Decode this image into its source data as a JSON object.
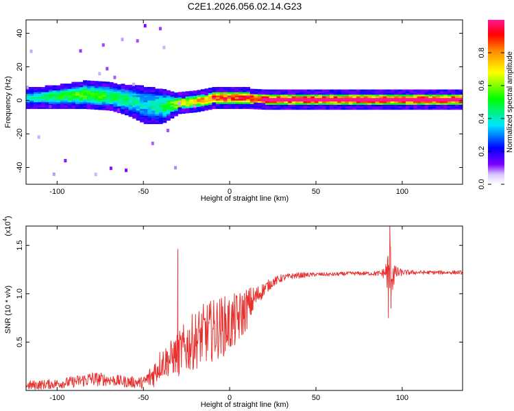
{
  "title": "C2E1.2026.056.02.14.G23",
  "chart_data": [
    {
      "type": "heatmap",
      "xlabel": "Height of straight line (km)",
      "ylabel": "Frequency (Hz)",
      "xlim": [
        -118,
        135
      ],
      "ylim": [
        -50,
        48
      ],
      "xticks": [
        -100,
        -50,
        0,
        50,
        100
      ],
      "yticks": [
        40,
        20,
        0,
        -20,
        -40
      ],
      "x_tick_labels": [
        "-100",
        "-50",
        "0",
        "50",
        "100"
      ],
      "y_tick_labels": [
        "40",
        "20",
        "0",
        "-20",
        "-40"
      ],
      "colorbar": {
        "label": "Normalized spectral amplitude",
        "range": [
          0,
          1
        ],
        "ticks": [
          0.0,
          0.2,
          0.4,
          0.6,
          0.8
        ],
        "tick_labels": [
          "0.0",
          "0.2",
          "0.4",
          "0.6",
          "0.8"
        ]
      },
      "band_profile": [
        {
          "x": -118,
          "center": 1,
          "halfwidth": 3,
          "amp": 0.4
        },
        {
          "x": -100,
          "center": 2,
          "halfwidth": 4,
          "amp": 0.5
        },
        {
          "x": -85,
          "center": 3,
          "halfwidth": 5,
          "amp": 0.55
        },
        {
          "x": -70,
          "center": 2,
          "halfwidth": 5,
          "amp": 0.5
        },
        {
          "x": -60,
          "center": 0,
          "halfwidth": 6,
          "amp": 0.45
        },
        {
          "x": -50,
          "center": -3,
          "halfwidth": 8,
          "amp": 0.35
        },
        {
          "x": -40,
          "center": -4,
          "halfwidth": 7,
          "amp": 0.45
        },
        {
          "x": -30,
          "center": -2,
          "halfwidth": 3,
          "amp": 0.7
        },
        {
          "x": -20,
          "center": -1,
          "halfwidth": 3,
          "amp": 0.75
        },
        {
          "x": -10,
          "center": 1,
          "halfwidth": 3,
          "amp": 0.9
        },
        {
          "x": 10,
          "center": 1,
          "halfwidth": 3,
          "amp": 0.95
        },
        {
          "x": 20,
          "center": 0,
          "halfwidth": 2.5,
          "amp": 1.0
        },
        {
          "x": 135,
          "center": 0,
          "halfwidth": 2.5,
          "amp": 1.0
        }
      ]
    },
    {
      "type": "line",
      "xlabel": "Height of straight line (km)",
      "ylabel": "SNR (10 * v/v)",
      "y_multiplier": "(x10",
      "y_multiplier_exp": "4",
      "y_multiplier_close": ")",
      "xlim": [
        -118,
        135
      ],
      "ylim": [
        0,
        1.7
      ],
      "xticks": [
        -100,
        -50,
        0,
        50,
        100
      ],
      "yticks": [
        0.5,
        1.0,
        1.5
      ],
      "x_tick_labels": [
        "-100",
        "-50",
        "0",
        "50",
        "100"
      ],
      "y_tick_labels": [
        "0.5",
        "1.0",
        "1.5"
      ],
      "color": "#e8312e",
      "series": [
        {
          "name": "SNR",
          "x": [
            -118,
            -100,
            -90,
            -80,
            -70,
            -60,
            -50,
            -45,
            -40,
            -35,
            -30,
            -25,
            -20,
            -15,
            -10,
            -5,
            0,
            5,
            10,
            15,
            20,
            25,
            30,
            35,
            40,
            50,
            60,
            70,
            80,
            88,
            90,
            93,
            96,
            100,
            110,
            120,
            135
          ],
          "base": [
            0.05,
            0.07,
            0.09,
            0.12,
            0.11,
            0.09,
            0.08,
            0.15,
            0.28,
            0.32,
            0.38,
            0.45,
            0.52,
            0.58,
            0.62,
            0.66,
            0.68,
            0.74,
            0.85,
            0.96,
            1.05,
            1.12,
            1.16,
            1.18,
            1.19,
            1.2,
            1.2,
            1.21,
            1.21,
            1.21,
            1.22,
            1.22,
            1.21,
            1.22,
            1.22,
            1.22,
            1.22
          ],
          "noise": [
            0.05,
            0.05,
            0.06,
            0.08,
            0.06,
            0.06,
            0.06,
            0.14,
            0.16,
            0.18,
            0.22,
            0.28,
            0.3,
            0.32,
            0.32,
            0.32,
            0.3,
            0.28,
            0.22,
            0.12,
            0.07,
            0.05,
            0.04,
            0.03,
            0.03,
            0.02,
            0.02,
            0.02,
            0.02,
            0.03,
            0.08,
            0.35,
            0.08,
            0.03,
            0.02,
            0.02,
            0.02
          ],
          "spikes": [
            {
              "x": -30,
              "y": 1.46
            },
            {
              "x": -29.5,
              "y": 0.15
            },
            {
              "x": 92,
              "y": 0.75
            },
            {
              "x": 92.8,
              "y": 1.72
            },
            {
              "x": 93.5,
              "y": 0.85
            }
          ]
        }
      ]
    }
  ]
}
